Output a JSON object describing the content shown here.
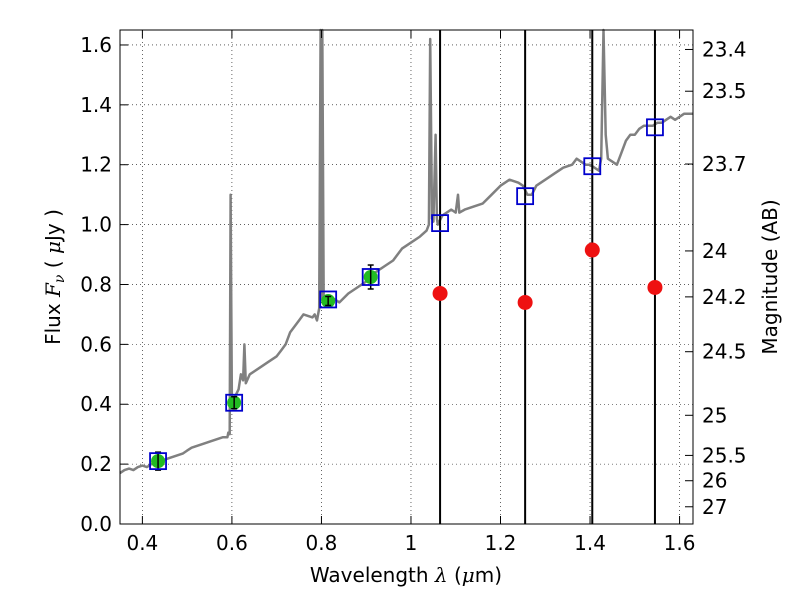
{
  "chart_data": {
    "type": "scatter",
    "xlabel": {
      "pre": "Wavelength  ",
      "sym": "λ",
      "open": " (",
      "mu": "μ",
      "unit": "m)"
    },
    "ylabel": {
      "pre": "Flux  ",
      "sym": "F",
      "sub": "ν",
      "open": "  ( ",
      "mu": "μ",
      "unit": "Jy )"
    },
    "y2label": "Magnitude (AB)",
    "xlim": [
      0.35,
      1.63
    ],
    "ylim": [
      0.0,
      1.65
    ],
    "grid": true,
    "x_ticks": [
      0.4,
      0.6,
      0.8,
      1.0,
      1.2,
      1.4,
      1.6
    ],
    "x_tick_labels": [
      "0.4",
      "0.6",
      "0.8",
      "1",
      "1.2",
      "1.4",
      "1.6"
    ],
    "y_ticks": [
      0.0,
      0.2,
      0.4,
      0.6,
      0.8,
      1.0,
      1.2,
      1.4,
      1.6
    ],
    "y_tick_labels": [
      "0.0",
      "0.2",
      "0.4",
      "0.6",
      "0.8",
      "1.0",
      "1.2",
      "1.4",
      "1.6"
    ],
    "mag_ticks": [
      {
        "mag": 23.4,
        "label": "23.4"
      },
      {
        "mag": 23.5,
        "label": "23.5"
      },
      {
        "mag": 23.7,
        "label": "23.7"
      },
      {
        "mag": 24.0,
        "label": "24"
      },
      {
        "mag": 24.2,
        "label": "24.2"
      },
      {
        "mag": 24.5,
        "label": "24.5"
      },
      {
        "mag": 25.0,
        "label": "25"
      },
      {
        "mag": 25.5,
        "label": "25.5"
      },
      {
        "mag": 26.0,
        "label": "26"
      },
      {
        "mag": 27.0,
        "label": "27"
      }
    ],
    "vertical_lines_x": [
      1.065,
      1.255,
      1.405,
      1.545
    ],
    "model_spectrum": {
      "color": "#808080",
      "points": [
        [
          0.35,
          0.17
        ],
        [
          0.36,
          0.18
        ],
        [
          0.37,
          0.185
        ],
        [
          0.38,
          0.18
        ],
        [
          0.39,
          0.19
        ],
        [
          0.4,
          0.195
        ],
        [
          0.41,
          0.19
        ],
        [
          0.42,
          0.2
        ],
        [
          0.43,
          0.2
        ],
        [
          0.44,
          0.205
        ],
        [
          0.45,
          0.215
        ],
        [
          0.46,
          0.22
        ],
        [
          0.47,
          0.225
        ],
        [
          0.48,
          0.23
        ],
        [
          0.49,
          0.235
        ],
        [
          0.5,
          0.245
        ],
        [
          0.51,
          0.255
        ],
        [
          0.52,
          0.26
        ],
        [
          0.53,
          0.265
        ],
        [
          0.54,
          0.27
        ],
        [
          0.55,
          0.275
        ],
        [
          0.56,
          0.28
        ],
        [
          0.57,
          0.285
        ],
        [
          0.58,
          0.29
        ],
        [
          0.59,
          0.29
        ],
        [
          0.592,
          0.305
        ],
        [
          0.595,
          0.3
        ],
        [
          0.597,
          1.1
        ],
        [
          0.6,
          0.4
        ],
        [
          0.605,
          0.42
        ],
        [
          0.615,
          0.45
        ],
        [
          0.62,
          0.5
        ],
        [
          0.625,
          0.48
        ],
        [
          0.628,
          0.6
        ],
        [
          0.631,
          0.47
        ],
        [
          0.64,
          0.5
        ],
        [
          0.66,
          0.52
        ],
        [
          0.68,
          0.54
        ],
        [
          0.7,
          0.56
        ],
        [
          0.71,
          0.58
        ],
        [
          0.72,
          0.6
        ],
        [
          0.73,
          0.64
        ],
        [
          0.74,
          0.66
        ],
        [
          0.75,
          0.68
        ],
        [
          0.76,
          0.7
        ],
        [
          0.77,
          0.695
        ],
        [
          0.78,
          0.69
        ],
        [
          0.785,
          0.7
        ],
        [
          0.79,
          0.68
        ],
        [
          0.795,
          0.72
        ],
        [
          0.798,
          1.65
        ],
        [
          0.8,
          0.75
        ],
        [
          0.802,
          1.65
        ],
        [
          0.805,
          0.74
        ],
        [
          0.82,
          0.76
        ],
        [
          0.84,
          0.74
        ],
        [
          0.86,
          0.77
        ],
        [
          0.88,
          0.79
        ],
        [
          0.9,
          0.81
        ],
        [
          0.92,
          0.84
        ],
        [
          0.94,
          0.86
        ],
        [
          0.96,
          0.88
        ],
        [
          0.98,
          0.92
        ],
        [
          1.0,
          0.94
        ],
        [
          1.02,
          0.96
        ],
        [
          1.035,
          0.98
        ],
        [
          1.04,
          1.0
        ],
        [
          1.043,
          1.62
        ],
        [
          1.047,
          1.02
        ],
        [
          1.05,
          1.01
        ],
        [
          1.055,
          1.3
        ],
        [
          1.058,
          1.02
        ],
        [
          1.06,
          1.0
        ],
        [
          1.07,
          1.03
        ],
        [
          1.09,
          1.05
        ],
        [
          1.1,
          1.04
        ],
        [
          1.105,
          1.1
        ],
        [
          1.108,
          1.04
        ],
        [
          1.12,
          1.05
        ],
        [
          1.14,
          1.06
        ],
        [
          1.16,
          1.07
        ],
        [
          1.18,
          1.1
        ],
        [
          1.2,
          1.13
        ],
        [
          1.21,
          1.14
        ],
        [
          1.22,
          1.15
        ],
        [
          1.24,
          1.14
        ],
        [
          1.25,
          1.13
        ],
        [
          1.26,
          1.1
        ],
        [
          1.27,
          1.1
        ],
        [
          1.28,
          1.13
        ],
        [
          1.3,
          1.15
        ],
        [
          1.32,
          1.17
        ],
        [
          1.34,
          1.19
        ],
        [
          1.36,
          1.2
        ],
        [
          1.37,
          1.22
        ],
        [
          1.38,
          1.21
        ],
        [
          1.39,
          1.2
        ],
        [
          1.4,
          1.2
        ],
        [
          1.41,
          1.19
        ],
        [
          1.42,
          1.18
        ],
        [
          1.425,
          1.22
        ],
        [
          1.43,
          1.65
        ],
        [
          1.435,
          1.3
        ],
        [
          1.44,
          1.22
        ],
        [
          1.45,
          1.21
        ],
        [
          1.46,
          1.2
        ],
        [
          1.47,
          1.24
        ],
        [
          1.48,
          1.28
        ],
        [
          1.49,
          1.3
        ],
        [
          1.5,
          1.3
        ],
        [
          1.51,
          1.32
        ],
        [
          1.52,
          1.33
        ],
        [
          1.53,
          1.33
        ],
        [
          1.54,
          1.33
        ],
        [
          1.55,
          1.34
        ],
        [
          1.56,
          1.34
        ],
        [
          1.57,
          1.35
        ],
        [
          1.58,
          1.36
        ],
        [
          1.59,
          1.35
        ],
        [
          1.6,
          1.36
        ],
        [
          1.61,
          1.37
        ],
        [
          1.62,
          1.37
        ],
        [
          1.63,
          1.37
        ]
      ]
    },
    "model_photometry": {
      "marker": "open square",
      "color": "#0000cc",
      "points": [
        [
          0.435,
          0.21
        ],
        [
          0.605,
          0.405
        ],
        [
          0.815,
          0.75
        ],
        [
          0.91,
          0.825
        ],
        [
          1.065,
          1.005
        ],
        [
          1.255,
          1.095
        ],
        [
          1.405,
          1.195
        ],
        [
          1.545,
          1.325
        ]
      ]
    },
    "observed_optical": {
      "marker": "filled circle with error bar",
      "color": "#22bb22",
      "points": [
        {
          "x": 0.435,
          "y": 0.21,
          "err": 0.03
        },
        {
          "x": 0.605,
          "y": 0.405,
          "err": 0.02
        },
        {
          "x": 0.815,
          "y": 0.745,
          "err": 0.015
        },
        {
          "x": 0.91,
          "y": 0.825,
          "err": 0.04
        }
      ]
    },
    "observed_nir": {
      "marker": "filled circle",
      "color": "#ee1111",
      "points": [
        [
          1.065,
          0.77
        ],
        [
          1.255,
          0.74
        ],
        [
          1.405,
          0.915
        ],
        [
          1.545,
          0.79
        ]
      ]
    }
  }
}
